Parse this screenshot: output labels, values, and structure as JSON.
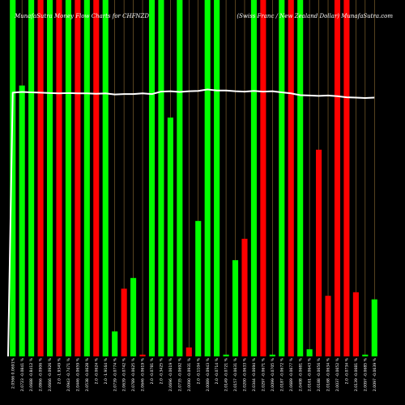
{
  "header": {
    "left": "MunafaSutra Money Flow Charts for CHFNZD",
    "right": "(Swiss Franc / New Zealand Dollar) MunafaSutra.com"
  },
  "chart_data": {
    "type": "bar",
    "title": "MunafaSutra Money Flow Charts for CHFNZD",
    "ylim": [
      0,
      100
    ],
    "colors": {
      "up": "#00ff00",
      "down": "#ff0000",
      "grid": "#d2a04a",
      "line": "#ffffff",
      "background": "#000000"
    },
    "categories": [
      "2.0566 0.0691%",
      "2.0723 -0.0841 %",
      "2.0688 -0.8412 %",
      "2.0866 -0.0906 %",
      "2.0666 -0.0926 %",
      "2.0 -1.9349 %",
      "2.0943 -0.7471 %",
      "2.0446 -0.0659 %",
      "2.0538 -0.0628 %",
      "2.0 -0.0624 %",
      "2.0 -1.9164 %",
      "2.0739 -0.0774 %",
      "2.0639 -0.0742 %",
      "2.0789 -0.0625 %",
      "2.0646 -0.0619 %",
      "2.0 -0.0781 %",
      "2.0 -0.3425 %",
      "2.0696 -0.0619 %",
      "2.0735 -0.0692 %",
      "2.0090 -0.0931 %",
      "2.0 -0.1104 %",
      "2.0089 -0.0943 %",
      "2.0 -0.0714 %",
      "2.0149 -0.0721 %",
      "2.0157 -0.0631 %",
      "2.0200 -0.0633 %",
      "2.0344 -0.0694 %",
      "2.0297 -0.0671 %",
      "2.0099 -0.0705 %",
      "2.0187 -0.0672 %",
      "2.0689 -0.0677 %",
      "2.0408 -0.0681 %",
      "2.0161 -0.0643 %",
      "2.0188 -0.0656 %",
      "2.0168 -0.0634 %",
      "2.0037 -0.0652 %",
      "2.0 -0.0734 %",
      "2.0139 -0.0681 %",
      "2.0097 -0.0685 %",
      "2.0097 -0.0639 %"
    ],
    "series": [
      {
        "type": "bar",
        "values": [
          100,
          76,
          100,
          100,
          100,
          100,
          100,
          100,
          100,
          100,
          100,
          7,
          19,
          22,
          0.5,
          100,
          100,
          67,
          100,
          2.5,
          38,
          100,
          100,
          0.5,
          27,
          33,
          100,
          100,
          0.5,
          100,
          100,
          100,
          2,
          58,
          17,
          100,
          100,
          18,
          0.5,
          16
        ],
        "colors": [
          "green",
          "green",
          "green",
          "red",
          "green",
          "red",
          "green",
          "red",
          "green",
          "red",
          "green",
          "green",
          "red",
          "green",
          "red",
          "green",
          "green",
          "green",
          "green",
          "red",
          "green",
          "green",
          "green",
          "green",
          "green",
          "red",
          "green",
          "red",
          "green",
          "green",
          "red",
          "green",
          "green",
          "red",
          "red",
          "red",
          "red",
          "red",
          "green",
          "green"
        ]
      },
      {
        "type": "line",
        "values": [
          74,
          74.2,
          74.1,
          74,
          73.9,
          73.8,
          73.9,
          73.8,
          73.8,
          73.7,
          73.8,
          73.5,
          73.6,
          73.6,
          73.8,
          73.6,
          74.3,
          74.4,
          74.2,
          74.4,
          74.5,
          74.9,
          74.6,
          74.6,
          74.4,
          74.3,
          74.5,
          74.3,
          74.4,
          74.1,
          73.8,
          73.3,
          73.2,
          73.1,
          73.2,
          73,
          72.7,
          72.6,
          72.5,
          72.6
        ]
      }
    ]
  }
}
